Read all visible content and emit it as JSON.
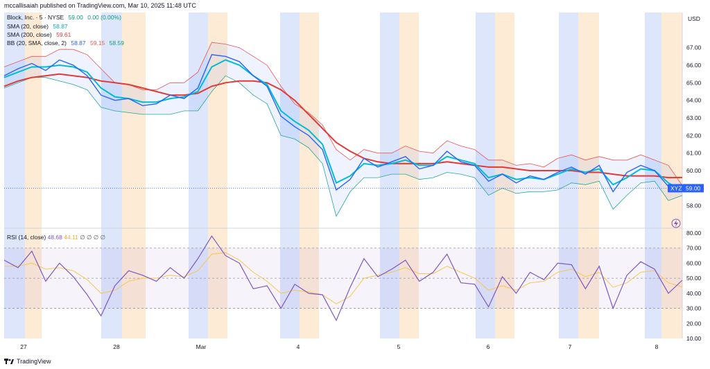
{
  "header": {
    "byline": "mccallisaiah published on TradingView.com, Mar 10, 2025 11:48 UTC"
  },
  "legend": {
    "symbol": "Block, Inc. · 5 · NYSE",
    "price": "59.00",
    "change": "0.00 (0.00%)",
    "sma20_label": "SMA (20, close)",
    "sma20_value": "58.87",
    "sma200_label": "SMA (200, close)",
    "sma200_value": "59.61",
    "bb_label": "BB (20, SMA, close, 2)",
    "bb_mid": "58.87",
    "bb_upper": "59.15",
    "bb_lower": "58.59"
  },
  "rsi_legend": {
    "label": "RSI (14, close)",
    "value": "48.68",
    "ma_value": "44.11",
    "extras": "∅ ∅ ∅ ∅"
  },
  "axis": {
    "currency": "USD"
  },
  "price_tag": {
    "ticker": "XYZ",
    "value": "59.00"
  },
  "footer": {
    "brand": "TradingView"
  },
  "colors": {
    "price": "#2962ff",
    "sma20": "#00bcd4",
    "sma200": "#e53935",
    "bb": "#ef5350",
    "rsi": "#7e57c2",
    "rsi_ma": "#f9c74f",
    "session_blue": "#dde6fb",
    "session_orange": "#fdebd5"
  },
  "chart_data": [
    {
      "type": "line",
      "title": "Block, Inc. · 5 · NYSE",
      "ylabel": "USD",
      "ylim": [
        57,
        69
      ],
      "y_ticks": [
        "58.00",
        "59.00",
        "60.00",
        "61.00",
        "62.00",
        "63.00",
        "64.00",
        "65.00",
        "66.00",
        "67.00"
      ],
      "x_ticks": [
        "27",
        "28",
        "Mar",
        "4",
        "5",
        "6",
        "7",
        "8"
      ],
      "series": [
        {
          "name": "Block, Inc. · 5 · NYSE",
          "values": [
            65.4,
            65.8,
            66.1,
            65.7,
            66.3,
            66.0,
            65.4,
            64.3,
            64.0,
            64.1,
            63.7,
            63.8,
            64.3,
            64.1,
            64.7,
            66.6,
            66.5,
            66.2,
            65.4,
            64.8,
            63.1,
            62.5,
            62.0,
            61.2,
            58.9,
            59.5,
            60.7,
            60.2,
            60.5,
            60.8,
            60.1,
            60.3,
            61.1,
            60.5,
            60.3,
            59.4,
            59.8,
            59.3,
            59.7,
            59.5,
            59.9,
            60.2,
            59.8,
            60.3,
            58.8,
            59.9,
            60.3,
            60.0,
            59.1,
            59.0
          ]
        },
        {
          "name": "SMA (20, close)",
          "values": [
            65.3,
            65.6,
            65.9,
            65.9,
            66.0,
            65.9,
            65.6,
            64.7,
            64.2,
            64.1,
            63.9,
            63.9,
            64.1,
            64.2,
            64.5,
            65.9,
            66.3,
            66.0,
            65.4,
            64.9,
            63.4,
            62.8,
            62.3,
            61.5,
            59.3,
            59.7,
            60.4,
            60.3,
            60.4,
            60.6,
            60.3,
            60.3,
            60.8,
            60.6,
            60.4,
            59.6,
            59.8,
            59.5,
            59.6,
            59.5,
            59.8,
            60.1,
            59.9,
            60.1,
            59.2,
            59.6,
            60.1,
            60.0,
            59.3,
            58.87
          ]
        },
        {
          "name": "SMA (200, close)",
          "values": [
            64.8,
            65.1,
            65.3,
            65.4,
            65.5,
            65.4,
            65.3,
            65.1,
            65.0,
            64.9,
            64.7,
            64.5,
            64.3,
            64.3,
            64.4,
            64.8,
            65.0,
            65.1,
            65.1,
            65.0,
            64.6,
            64.0,
            63.2,
            62.4,
            61.6,
            61.1,
            60.7,
            60.5,
            60.4,
            60.4,
            60.4,
            60.4,
            60.5,
            60.4,
            60.3,
            60.2,
            60.2,
            60.1,
            60.0,
            60.0,
            60.0,
            60.0,
            59.9,
            59.9,
            59.8,
            59.7,
            59.7,
            59.7,
            59.6,
            59.61
          ]
        },
        {
          "name": "BB (20, SMA, close, 2)",
          "values": [
            65.9,
            66.2,
            66.5,
            66.5,
            66.9,
            66.9,
            66.6,
            65.8,
            65.0,
            64.9,
            64.6,
            64.6,
            65.0,
            65.0,
            65.6,
            67.3,
            67.2,
            67.0,
            66.5,
            66.0,
            64.8,
            63.8,
            63.3,
            62.6,
            61.2,
            60.6,
            61.2,
            61.0,
            61.0,
            61.4,
            61.1,
            61.0,
            61.7,
            61.4,
            61.2,
            60.6,
            60.6,
            60.3,
            60.4,
            60.2,
            60.7,
            60.9,
            60.6,
            60.8,
            60.6,
            60.6,
            60.9,
            60.6,
            60.3,
            59.15
          ]
        },
        {
          "name": "BB (20, SMA, close, 2)",
          "values": [
            64.7,
            65.0,
            65.3,
            65.3,
            65.1,
            64.9,
            64.6,
            63.6,
            63.4,
            63.3,
            63.2,
            63.2,
            63.2,
            63.4,
            63.4,
            64.5,
            65.4,
            65.0,
            64.3,
            63.8,
            62.0,
            61.8,
            61.3,
            60.4,
            57.4,
            58.8,
            59.6,
            59.6,
            59.8,
            59.8,
            59.5,
            59.6,
            59.9,
            59.8,
            59.6,
            58.6,
            59.0,
            58.7,
            58.8,
            58.8,
            58.9,
            59.3,
            59.2,
            59.4,
            57.8,
            58.6,
            59.3,
            59.4,
            58.3,
            58.59
          ]
        }
      ]
    },
    {
      "type": "line",
      "title": "RSI (14, close)",
      "ylim": [
        10,
        80
      ],
      "y_ticks": [
        "10.00",
        "20.00",
        "30.00",
        "40.00",
        "50.00",
        "60.00",
        "70.00",
        "80.00"
      ],
      "bands": [
        30,
        50,
        70
      ],
      "series": [
        {
          "name": "RSI (14, close)",
          "values": [
            62,
            57,
            68,
            48,
            60,
            51,
            39,
            25,
            45,
            55,
            52,
            48,
            57,
            50,
            63,
            78,
            65,
            60,
            43,
            45,
            30,
            46,
            40,
            39,
            22,
            44,
            63,
            51,
            56,
            62,
            48,
            54,
            66,
            47,
            46,
            31,
            51,
            40,
            54,
            49,
            60,
            59,
            43,
            58,
            30,
            52,
            61,
            56,
            40,
            48.68
          ]
        },
        {
          "name": "RSI MA",
          "values": [
            58,
            58,
            60,
            56,
            57,
            55,
            49,
            40,
            42,
            48,
            50,
            50,
            52,
            51,
            55,
            66,
            67,
            62,
            54,
            48,
            40,
            42,
            41,
            39,
            33,
            38,
            50,
            52,
            54,
            57,
            53,
            53,
            58,
            54,
            50,
            42,
            45,
            42,
            47,
            48,
            54,
            56,
            51,
            54,
            44,
            47,
            54,
            55,
            47,
            44.11
          ]
        }
      ]
    }
  ]
}
